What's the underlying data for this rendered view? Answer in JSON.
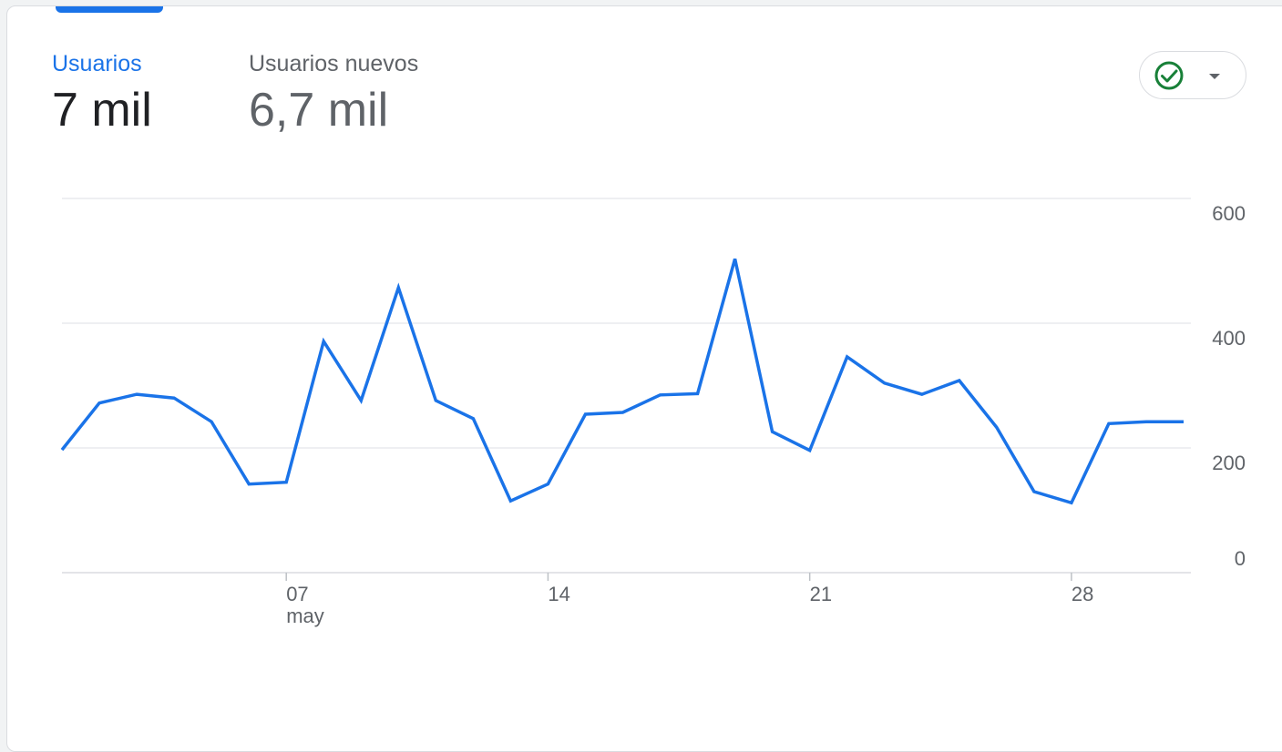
{
  "metrics": [
    {
      "label": "Usuarios",
      "value": "7 mil"
    },
    {
      "label": "Usuarios nuevos",
      "value": "6,7 mil"
    }
  ],
  "status_chip": {
    "icon": "check-circle-icon",
    "dropdown_icon": "caret-down-icon"
  },
  "colors": {
    "accent": "#1a73e8",
    "check": "#188038",
    "grid": "#e8eaed",
    "tick": "#5f6368"
  },
  "chart_data": {
    "type": "line",
    "y_axis_side": "right",
    "ylim": [
      0,
      600
    ],
    "yticks": [
      "0",
      "200",
      "400",
      "600"
    ],
    "xticks": [
      {
        "day": 7,
        "label": "07",
        "sublabel": "may"
      },
      {
        "day": 14,
        "label": "14",
        "sublabel": ""
      },
      {
        "day": 21,
        "label": "21",
        "sublabel": ""
      },
      {
        "day": 28,
        "label": "28",
        "sublabel": ""
      }
    ],
    "x": [
      "2023-05-01",
      "2023-05-02",
      "2023-05-03",
      "2023-05-04",
      "2023-05-05",
      "2023-05-06",
      "2023-05-07",
      "2023-05-08",
      "2023-05-09",
      "2023-05-10",
      "2023-05-11",
      "2023-05-12",
      "2023-05-13",
      "2023-05-14",
      "2023-05-15",
      "2023-05-16",
      "2023-05-17",
      "2023-05-18",
      "2023-05-19",
      "2023-05-20",
      "2023-05-21",
      "2023-05-22",
      "2023-05-23",
      "2023-05-24",
      "2023-05-25",
      "2023-05-26",
      "2023-05-27",
      "2023-05-28",
      "2023-05-29",
      "2023-05-30",
      "2023-05-31"
    ],
    "series": [
      {
        "values": [
          197,
          272,
          286,
          280,
          242,
          142,
          145,
          371,
          276,
          457,
          276,
          247,
          115,
          142,
          254,
          257,
          285,
          287,
          503,
          226,
          196,
          346,
          304,
          286,
          308,
          233,
          130,
          112,
          239,
          242,
          242
        ]
      }
    ]
  }
}
